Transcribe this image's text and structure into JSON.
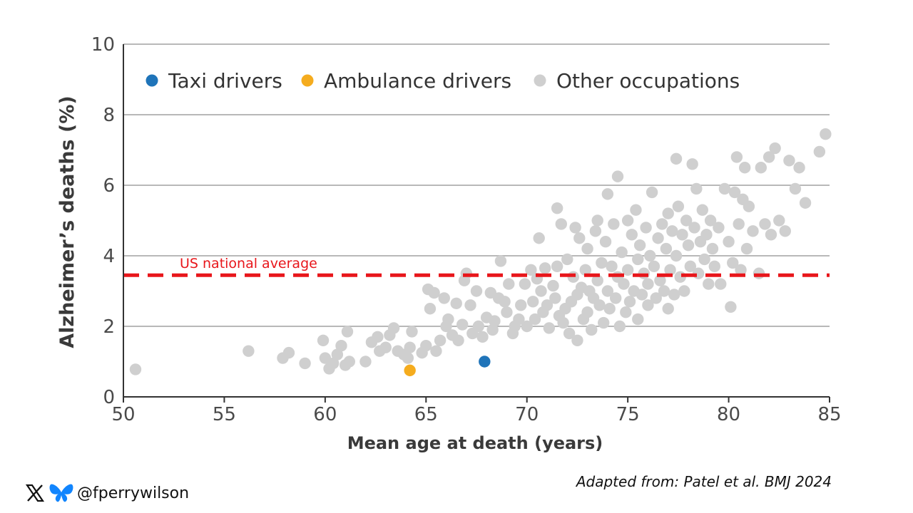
{
  "chart_data": {
    "type": "scatter",
    "xlabel": "Mean age at death (years)",
    "ylabel": "Alzheimer’s deaths (%)",
    "xlim": [
      50,
      85
    ],
    "ylim": [
      0,
      10
    ],
    "xticks": [
      "50",
      "55",
      "60",
      "65",
      "70",
      "75",
      "80",
      "85"
    ],
    "yticks": [
      "0",
      "2",
      "4",
      "6",
      "8",
      "10"
    ],
    "grid": "horizontal",
    "legend_position": "top-left",
    "reference_line": {
      "label": "US national average",
      "y": 3.45,
      "color": "#e8161b"
    },
    "series": [
      {
        "name": "Taxi drivers",
        "color": "#1f74b9",
        "points": [
          [
            67.9,
            1.0
          ]
        ]
      },
      {
        "name": "Ambulance drivers",
        "color": "#f5ac1e",
        "points": [
          [
            64.2,
            0.75
          ]
        ]
      },
      {
        "name": "Other occupations",
        "color": "#cfcfcf",
        "points": [
          [
            50.6,
            0.78
          ],
          [
            56.2,
            1.3
          ],
          [
            57.9,
            1.1
          ],
          [
            58.2,
            1.25
          ],
          [
            59.0,
            0.95
          ],
          [
            59.9,
            1.6
          ],
          [
            60.0,
            1.1
          ],
          [
            60.2,
            0.8
          ],
          [
            60.4,
            0.95
          ],
          [
            60.6,
            1.2
          ],
          [
            60.8,
            1.45
          ],
          [
            61.0,
            0.9
          ],
          [
            61.1,
            1.85
          ],
          [
            61.2,
            1.0
          ],
          [
            62.0,
            1.0
          ],
          [
            62.3,
            1.55
          ],
          [
            62.6,
            1.7
          ],
          [
            62.7,
            1.3
          ],
          [
            63.0,
            1.4
          ],
          [
            63.2,
            1.75
          ],
          [
            63.4,
            1.95
          ],
          [
            63.6,
            1.3
          ],
          [
            63.9,
            1.2
          ],
          [
            64.1,
            1.1
          ],
          [
            64.2,
            1.4
          ],
          [
            64.3,
            1.85
          ],
          [
            64.8,
            1.25
          ],
          [
            65.0,
            1.45
          ],
          [
            65.1,
            3.05
          ],
          [
            65.2,
            2.5
          ],
          [
            65.4,
            2.95
          ],
          [
            65.5,
            1.3
          ],
          [
            65.7,
            1.6
          ],
          [
            65.9,
            2.8
          ],
          [
            66.0,
            2.0
          ],
          [
            66.1,
            2.2
          ],
          [
            66.3,
            1.75
          ],
          [
            66.5,
            2.65
          ],
          [
            66.6,
            1.6
          ],
          [
            66.8,
            2.05
          ],
          [
            66.9,
            3.3
          ],
          [
            67.0,
            3.5
          ],
          [
            67.2,
            2.6
          ],
          [
            67.3,
            1.8
          ],
          [
            67.5,
            3.0
          ],
          [
            67.6,
            2.0
          ],
          [
            67.8,
            1.7
          ],
          [
            68.0,
            2.25
          ],
          [
            68.2,
            2.95
          ],
          [
            68.3,
            1.9
          ],
          [
            68.4,
            2.15
          ],
          [
            68.6,
            2.8
          ],
          [
            68.7,
            3.85
          ],
          [
            68.9,
            2.7
          ],
          [
            69.0,
            2.4
          ],
          [
            69.1,
            3.2
          ],
          [
            69.3,
            1.8
          ],
          [
            69.4,
            2.0
          ],
          [
            69.6,
            2.2
          ],
          [
            69.7,
            2.6
          ],
          [
            69.9,
            3.2
          ],
          [
            70.0,
            2.0
          ],
          [
            70.2,
            3.6
          ],
          [
            70.3,
            2.7
          ],
          [
            70.4,
            2.2
          ],
          [
            70.5,
            3.35
          ],
          [
            70.6,
            4.5
          ],
          [
            70.7,
            3.0
          ],
          [
            70.8,
            2.4
          ],
          [
            70.9,
            3.65
          ],
          [
            71.0,
            2.6
          ],
          [
            71.1,
            1.95
          ],
          [
            71.3,
            3.15
          ],
          [
            71.4,
            2.8
          ],
          [
            71.5,
            5.35
          ],
          [
            71.5,
            3.7
          ],
          [
            71.6,
            2.3
          ],
          [
            71.7,
            4.9
          ],
          [
            71.8,
            2.1
          ],
          [
            71.9,
            2.5
          ],
          [
            72.0,
            3.9
          ],
          [
            72.1,
            1.8
          ],
          [
            72.2,
            2.7
          ],
          [
            72.3,
            3.4
          ],
          [
            72.4,
            4.8
          ],
          [
            72.5,
            2.9
          ],
          [
            72.5,
            1.6
          ],
          [
            72.6,
            4.5
          ],
          [
            72.7,
            3.1
          ],
          [
            72.8,
            2.2
          ],
          [
            72.9,
            3.6
          ],
          [
            73.0,
            2.4
          ],
          [
            73.0,
            4.2
          ],
          [
            73.1,
            3.0
          ],
          [
            73.2,
            1.9
          ],
          [
            73.3,
            2.8
          ],
          [
            73.4,
            4.7
          ],
          [
            73.5,
            3.3
          ],
          [
            73.5,
            5.0
          ],
          [
            73.6,
            2.6
          ],
          [
            73.7,
            3.8
          ],
          [
            73.8,
            2.1
          ],
          [
            73.9,
            4.4
          ],
          [
            74.0,
            3.0
          ],
          [
            74.0,
            5.75
          ],
          [
            74.1,
            2.5
          ],
          [
            74.2,
            3.7
          ],
          [
            74.3,
            4.9
          ],
          [
            74.4,
            2.8
          ],
          [
            74.5,
            3.4
          ],
          [
            74.5,
            6.25
          ],
          [
            74.6,
            2.0
          ],
          [
            74.7,
            4.1
          ],
          [
            74.8,
            3.2
          ],
          [
            74.9,
            2.4
          ],
          [
            75.0,
            5.0
          ],
          [
            75.0,
            3.6
          ],
          [
            75.1,
            2.7
          ],
          [
            75.2,
            4.6
          ],
          [
            75.3,
            3.0
          ],
          [
            75.4,
            5.3
          ],
          [
            75.5,
            2.2
          ],
          [
            75.5,
            3.9
          ],
          [
            75.6,
            4.3
          ],
          [
            75.7,
            2.9
          ],
          [
            75.8,
            3.5
          ],
          [
            75.9,
            4.8
          ],
          [
            76.0,
            2.6
          ],
          [
            76.0,
            3.2
          ],
          [
            76.1,
            4.0
          ],
          [
            76.2,
            5.8
          ],
          [
            76.3,
            3.7
          ],
          [
            76.4,
            2.8
          ],
          [
            76.5,
            4.5
          ],
          [
            76.6,
            3.3
          ],
          [
            76.7,
            4.9
          ],
          [
            76.8,
            3.0
          ],
          [
            76.9,
            4.2
          ],
          [
            77.0,
            2.5
          ],
          [
            77.0,
            5.2
          ],
          [
            77.1,
            3.6
          ],
          [
            77.2,
            4.7
          ],
          [
            77.3,
            2.9
          ],
          [
            77.4,
            6.75
          ],
          [
            77.4,
            4.0
          ],
          [
            77.5,
            5.4
          ],
          [
            77.6,
            3.4
          ],
          [
            77.7,
            4.6
          ],
          [
            77.8,
            3.0
          ],
          [
            77.9,
            5.0
          ],
          [
            78.0,
            4.3
          ],
          [
            78.1,
            3.7
          ],
          [
            78.2,
            6.6
          ],
          [
            78.3,
            4.8
          ],
          [
            78.4,
            5.9
          ],
          [
            78.5,
            3.5
          ],
          [
            78.6,
            4.4
          ],
          [
            78.7,
            5.3
          ],
          [
            78.8,
            3.9
          ],
          [
            78.9,
            4.6
          ],
          [
            79.0,
            3.2
          ],
          [
            79.1,
            5.0
          ],
          [
            79.2,
            4.2
          ],
          [
            79.3,
            3.7
          ],
          [
            79.5,
            4.8
          ],
          [
            79.6,
            3.2
          ],
          [
            79.8,
            5.9
          ],
          [
            80.0,
            4.4
          ],
          [
            80.1,
            2.55
          ],
          [
            80.2,
            3.8
          ],
          [
            80.3,
            5.8
          ],
          [
            80.4,
            6.8
          ],
          [
            80.5,
            4.9
          ],
          [
            80.6,
            3.6
          ],
          [
            80.7,
            5.6
          ],
          [
            80.8,
            6.5
          ],
          [
            80.9,
            4.2
          ],
          [
            81.0,
            5.4
          ],
          [
            81.2,
            4.7
          ],
          [
            81.5,
            3.5
          ],
          [
            81.6,
            6.5
          ],
          [
            81.8,
            4.9
          ],
          [
            82.0,
            6.8
          ],
          [
            82.1,
            4.6
          ],
          [
            82.3,
            7.05
          ],
          [
            82.5,
            5.0
          ],
          [
            82.8,
            4.7
          ],
          [
            83.0,
            6.7
          ],
          [
            83.3,
            5.9
          ],
          [
            83.5,
            6.5
          ],
          [
            83.8,
            5.5
          ],
          [
            84.5,
            6.95
          ],
          [
            84.8,
            7.45
          ]
        ]
      }
    ]
  },
  "footer": {
    "handle": "@fperrywilson",
    "credit": "Adapted from: Patel et al. BMJ 2024"
  }
}
